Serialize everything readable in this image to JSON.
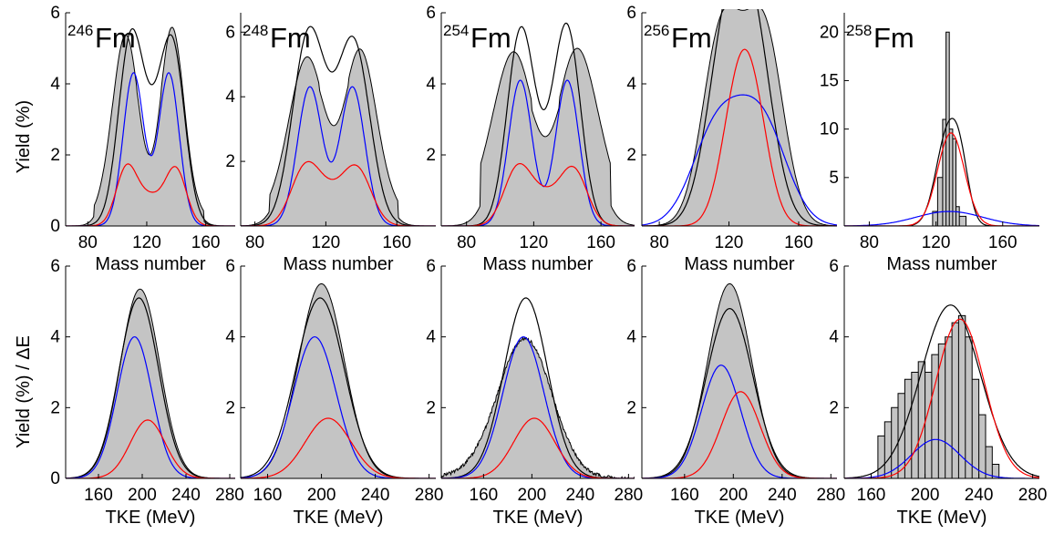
{
  "figure": {
    "ylabel_top": "Yield (%)",
    "ylabel_bottom": "Yield (%) / ΔE",
    "xlabel_top": "Mass number",
    "xlabel_bottom": "TKE (MeV)"
  },
  "chart_data": [
    {
      "row": "mass",
      "col": 0,
      "type": "area",
      "isotope_mass": "246",
      "isotope_symbol": "Fm",
      "xlim": [
        65,
        180
      ],
      "ylim": [
        0,
        6
      ],
      "xticks": [
        80,
        120,
        160
      ],
      "yticks": [
        0,
        2,
        4,
        6
      ],
      "grey_mode": "bimodal",
      "grey": {
        "peaks": [
          [
            106,
            5.2,
            9
          ],
          [
            137,
            5.4,
            8
          ]
        ],
        "base": 0.35
      },
      "black": [
        [
          110,
          4.2,
          9
        ],
        [
          136,
          4.2,
          9
        ],
        [
          107,
          1.0,
          7
        ],
        [
          122,
          0.9,
          9
        ],
        [
          140,
          1.0,
          7
        ]
      ],
      "blue": [
        [
          111,
          4.3,
          7
        ],
        [
          135,
          4.3,
          7
        ]
      ],
      "red": [
        [
          106,
          1.5,
          7
        ],
        [
          122,
          0.8,
          10
        ],
        [
          140,
          1.5,
          7
        ]
      ]
    },
    {
      "row": "mass",
      "col": 1,
      "type": "area",
      "isotope_mass": "248",
      "isotope_symbol": "Fm",
      "xlim": [
        72,
        182
      ],
      "ylim": [
        0,
        6.6
      ],
      "xticks": [
        80,
        120,
        160
      ],
      "yticks": [
        2,
        4,
        6
      ],
      "grey_mode": "bimodal",
      "grey": {
        "peaks": [
          [
            110,
            4.9,
            10
          ],
          [
            139,
            5.1,
            9
          ]
        ],
        "base": 0.6
      },
      "black": [
        [
          110,
          5.6,
          9
        ],
        [
          136,
          5.4,
          9
        ],
        [
          122,
          0.9,
          10
        ]
      ],
      "blue": [
        [
          111,
          4.3,
          7
        ],
        [
          135,
          4.3,
          7
        ]
      ],
      "red": [
        [
          108,
          1.6,
          8
        ],
        [
          122,
          0.9,
          10
        ],
        [
          138,
          1.6,
          8
        ]
      ]
    },
    {
      "row": "mass",
      "col": 2,
      "type": "area",
      "isotope_mass": "254",
      "isotope_symbol": "Fm",
      "xlim": [
        65,
        180
      ],
      "ylim": [
        0,
        6
      ],
      "xticks": [
        80,
        120,
        160
      ],
      "yticks": [
        2,
        4,
        6
      ],
      "grey_mode": "bimodal",
      "grey": {
        "peaks": [
          [
            110,
            4.1,
            11
          ],
          [
            144,
            4.2,
            11
          ]
        ],
        "base": 1.4
      },
      "black": [
        [
          112,
          5.2,
          8
        ],
        [
          140,
          5.3,
          8
        ],
        [
          126,
          1.0,
          10
        ]
      ],
      "blue": [
        [
          112,
          4.1,
          7
        ],
        [
          140,
          4.1,
          7
        ]
      ],
      "red": [
        [
          110,
          1.5,
          8
        ],
        [
          126,
          0.8,
          10
        ],
        [
          144,
          1.5,
          8
        ]
      ]
    },
    {
      "row": "mass",
      "col": 3,
      "type": "area",
      "isotope_mass": "256",
      "isotope_symbol": "Fm",
      "xlim": [
        70,
        182
      ],
      "ylim": [
        0,
        6
      ],
      "xticks": [
        80,
        120,
        160
      ],
      "yticks": [
        2,
        4,
        6
      ],
      "grey_mode": "bimodal",
      "grey": {
        "peaks": [
          [
            116,
            5.5,
            11
          ],
          [
            140,
            5.5,
            11
          ]
        ],
        "base": 0
      },
      "black": [
        [
          118,
          4.2,
          11
        ],
        [
          134,
          4.2,
          11
        ],
        [
          128,
          1.2,
          14
        ]
      ],
      "blue": [
        [
          112,
          2.3,
          14
        ],
        [
          140,
          2.3,
          14
        ],
        [
          128,
          0.9,
          16
        ]
      ],
      "red": [
        [
          124,
          2.9,
          9
        ],
        [
          134,
          2.9,
          9
        ]
      ]
    },
    {
      "row": "mass",
      "col": 4,
      "type": "area",
      "isotope_mass": "258",
      "isotope_symbol": "Fm",
      "xlim": [
        65,
        182
      ],
      "ylim": [
        0,
        22
      ],
      "xticks": [
        80,
        120,
        160
      ],
      "yticks": [
        5,
        10,
        15,
        20
      ],
      "grey_mode": "hist258",
      "black": [
        [
          127,
          9.5,
          7
        ],
        [
          135,
          4.0,
          5
        ]
      ],
      "blue": [
        [
          128,
          1.5,
          20
        ]
      ],
      "red": [
        [
          129,
          9.6,
          8
        ]
      ]
    },
    {
      "row": "tke",
      "col": 0,
      "type": "area",
      "xlim": [
        130,
        285
      ],
      "ylim": [
        0,
        6
      ],
      "xticks": [
        160,
        200,
        240,
        280
      ],
      "yticks": [
        0,
        2,
        4,
        6
      ],
      "grey_mode": "gauss",
      "grey": {
        "peaks": [
          [
            198,
            5.35,
            18
          ]
        ]
      },
      "black": [
        [
          197,
          5.1,
          18
        ]
      ],
      "blue": [
        [
          193,
          4.0,
          16
        ]
      ],
      "red": [
        [
          205,
          1.65,
          16
        ]
      ]
    },
    {
      "row": "tke",
      "col": 1,
      "type": "area",
      "xlim": [
        140,
        285
      ],
      "ylim": [
        0,
        6
      ],
      "xticks": [
        160,
        200,
        240,
        280
      ],
      "yticks": [
        2,
        4,
        6
      ],
      "grey_mode": "gauss",
      "grey": {
        "peaks": [
          [
            200,
            5.5,
            17
          ]
        ]
      },
      "black": [
        [
          199,
          5.1,
          18
        ]
      ],
      "blue": [
        [
          195,
          4.0,
          16
        ]
      ],
      "red": [
        [
          205,
          1.7,
          17
        ]
      ]
    },
    {
      "row": "tke",
      "col": 2,
      "type": "area",
      "xlim": [
        125,
        285
      ],
      "ylim": [
        0,
        6
      ],
      "xticks": [
        160,
        200,
        240,
        280
      ],
      "yticks": [
        2,
        4,
        6
      ],
      "grey_mode": "gaussnoisy",
      "grey": {
        "peaks": [
          [
            195,
            3.8,
            22
          ]
        ]
      },
      "black": [
        [
          195,
          5.1,
          18
        ]
      ],
      "blue": [
        [
          193,
          4.0,
          17
        ]
      ],
      "red": [
        [
          202,
          1.7,
          17
        ]
      ]
    },
    {
      "row": "tke",
      "col": 3,
      "type": "area",
      "xlim": [
        125,
        285
      ],
      "ylim": [
        0,
        6
      ],
      "xticks": [
        160,
        200,
        240,
        280
      ],
      "yticks": [
        2,
        4,
        6
      ],
      "grey_mode": "gauss",
      "grey": {
        "peaks": [
          [
            197,
            5.5,
            18
          ]
        ]
      },
      "black": [
        [
          197,
          4.8,
          19
        ]
      ],
      "blue": [
        [
          190,
          3.2,
          16
        ]
      ],
      "red": [
        [
          206,
          2.45,
          16
        ]
      ]
    },
    {
      "row": "tke",
      "col": 4,
      "type": "area",
      "xlim": [
        140,
        285
      ],
      "ylim": [
        0,
        6
      ],
      "xticks": [
        160,
        200,
        240,
        280
      ],
      "yticks": [
        2,
        4,
        6
      ],
      "grey_mode": "hist258tke",
      "black": [
        [
          219,
          4.9,
          22
        ]
      ],
      "blue": [
        [
          208,
          1.1,
          18
        ]
      ],
      "red": [
        [
          226,
          4.5,
          18
        ]
      ]
    }
  ]
}
